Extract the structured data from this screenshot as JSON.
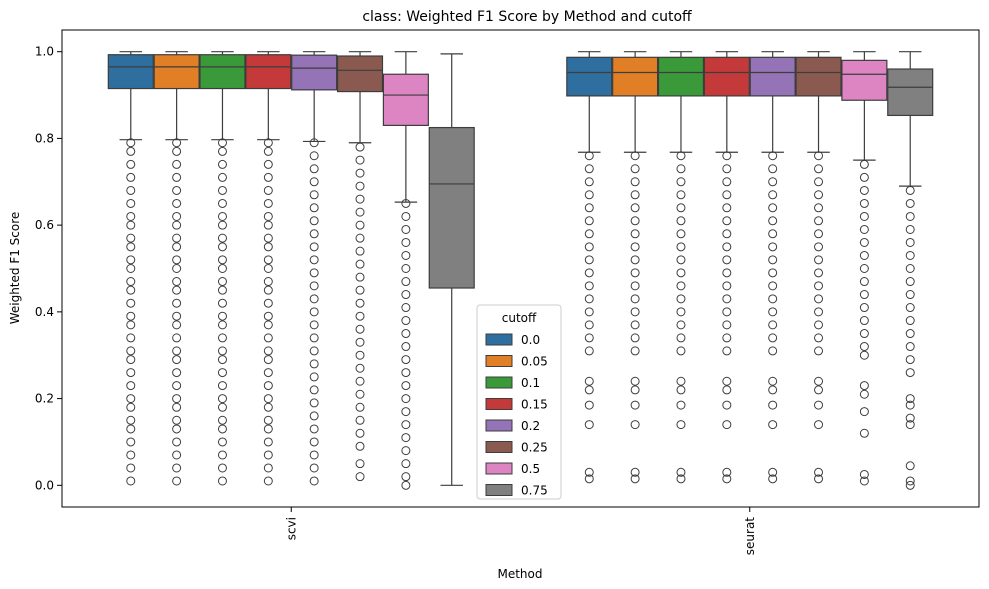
{
  "chart_data": {
    "type": "box",
    "title": "class: Weighted F1 Score by Method and cutoff",
    "xlabel": "Method",
    "ylabel": "Weighted F1 Score",
    "ylim": [
      -0.05,
      1.05
    ],
    "yticks": [
      0.0,
      0.2,
      0.4,
      0.6,
      0.8,
      1.0
    ],
    "ytick_labels": [
      "0.0",
      "0.2",
      "0.4",
      "0.6",
      "0.8",
      "1.0"
    ],
    "categories": [
      "scvi",
      "seurat"
    ],
    "grid": false,
    "legend": {
      "title": "cutoff",
      "position": "lower-center"
    },
    "series": [
      {
        "name": "0.0",
        "color": "#2f6f9f",
        "stats": [
          {
            "whisker_low": 0.797,
            "q1": 0.915,
            "median": 0.965,
            "q3": 0.993,
            "whisker_high": 1.0,
            "outliers": [
              0.79,
              0.77,
              0.74,
              0.71,
              0.68,
              0.65,
              0.62,
              0.6,
              0.57,
              0.55,
              0.52,
              0.5,
              0.47,
              0.45,
              0.42,
              0.39,
              0.37,
              0.34,
              0.31,
              0.29,
              0.26,
              0.23,
              0.2,
              0.18,
              0.15,
              0.13,
              0.1,
              0.07,
              0.04,
              0.01
            ]
          },
          {
            "whisker_low": 0.768,
            "q1": 0.898,
            "median": 0.952,
            "q3": 0.987,
            "whisker_high": 1.0,
            "outliers": [
              0.76,
              0.73,
              0.7,
              0.67,
              0.64,
              0.61,
              0.58,
              0.55,
              0.52,
              0.49,
              0.46,
              0.43,
              0.4,
              0.37,
              0.34,
              0.31,
              0.24,
              0.22,
              0.185,
              0.14,
              0.03,
              0.015
            ]
          }
        ]
      },
      {
        "name": "0.05",
        "color": "#e07f26",
        "stats": [
          {
            "whisker_low": 0.797,
            "q1": 0.915,
            "median": 0.965,
            "q3": 0.993,
            "whisker_high": 1.0,
            "outliers": [
              0.79,
              0.77,
              0.74,
              0.71,
              0.68,
              0.65,
              0.62,
              0.6,
              0.57,
              0.55,
              0.52,
              0.5,
              0.47,
              0.45,
              0.42,
              0.39,
              0.37,
              0.34,
              0.31,
              0.29,
              0.26,
              0.23,
              0.2,
              0.18,
              0.15,
              0.13,
              0.1,
              0.07,
              0.04,
              0.01
            ]
          },
          {
            "whisker_low": 0.768,
            "q1": 0.898,
            "median": 0.952,
            "q3": 0.987,
            "whisker_high": 1.0,
            "outliers": [
              0.76,
              0.73,
              0.7,
              0.67,
              0.64,
              0.61,
              0.58,
              0.55,
              0.52,
              0.49,
              0.46,
              0.43,
              0.4,
              0.37,
              0.34,
              0.31,
              0.24,
              0.22,
              0.185,
              0.14,
              0.03,
              0.015
            ]
          }
        ]
      },
      {
        "name": "0.1",
        "color": "#3a9a3a",
        "stats": [
          {
            "whisker_low": 0.797,
            "q1": 0.915,
            "median": 0.965,
            "q3": 0.993,
            "whisker_high": 1.0,
            "outliers": [
              0.79,
              0.77,
              0.74,
              0.71,
              0.68,
              0.65,
              0.62,
              0.6,
              0.57,
              0.55,
              0.52,
              0.5,
              0.47,
              0.45,
              0.42,
              0.39,
              0.37,
              0.34,
              0.31,
              0.29,
              0.26,
              0.23,
              0.2,
              0.18,
              0.15,
              0.13,
              0.1,
              0.07,
              0.04,
              0.01
            ]
          },
          {
            "whisker_low": 0.768,
            "q1": 0.898,
            "median": 0.952,
            "q3": 0.987,
            "whisker_high": 1.0,
            "outliers": [
              0.76,
              0.73,
              0.7,
              0.67,
              0.64,
              0.61,
              0.58,
              0.55,
              0.52,
              0.49,
              0.46,
              0.43,
              0.4,
              0.37,
              0.34,
              0.31,
              0.24,
              0.22,
              0.185,
              0.14,
              0.03,
              0.015
            ]
          }
        ]
      },
      {
        "name": "0.15",
        "color": "#c43a3a",
        "stats": [
          {
            "whisker_low": 0.797,
            "q1": 0.915,
            "median": 0.965,
            "q3": 0.993,
            "whisker_high": 1.0,
            "outliers": [
              0.79,
              0.77,
              0.74,
              0.71,
              0.68,
              0.65,
              0.62,
              0.6,
              0.57,
              0.55,
              0.52,
              0.5,
              0.47,
              0.45,
              0.42,
              0.39,
              0.37,
              0.34,
              0.31,
              0.29,
              0.26,
              0.23,
              0.2,
              0.18,
              0.15,
              0.13,
              0.1,
              0.07,
              0.04,
              0.01
            ]
          },
          {
            "whisker_low": 0.768,
            "q1": 0.898,
            "median": 0.952,
            "q3": 0.987,
            "whisker_high": 1.0,
            "outliers": [
              0.76,
              0.73,
              0.7,
              0.67,
              0.64,
              0.61,
              0.58,
              0.55,
              0.52,
              0.49,
              0.46,
              0.43,
              0.4,
              0.37,
              0.34,
              0.31,
              0.24,
              0.22,
              0.185,
              0.14,
              0.03,
              0.015
            ]
          }
        ]
      },
      {
        "name": "0.2",
        "color": "#9473b6",
        "stats": [
          {
            "whisker_low": 0.793,
            "q1": 0.912,
            "median": 0.962,
            "q3": 0.992,
            "whisker_high": 1.0,
            "outliers": [
              0.79,
              0.76,
              0.73,
              0.7,
              0.67,
              0.64,
              0.61,
              0.58,
              0.55,
              0.52,
              0.49,
              0.46,
              0.43,
              0.4,
              0.37,
              0.34,
              0.31,
              0.28,
              0.25,
              0.22,
              0.19,
              0.16,
              0.13,
              0.1,
              0.07,
              0.04,
              0.01
            ]
          },
          {
            "whisker_low": 0.768,
            "q1": 0.898,
            "median": 0.952,
            "q3": 0.987,
            "whisker_high": 1.0,
            "outliers": [
              0.76,
              0.73,
              0.7,
              0.67,
              0.64,
              0.61,
              0.58,
              0.55,
              0.52,
              0.49,
              0.46,
              0.43,
              0.4,
              0.37,
              0.34,
              0.31,
              0.24,
              0.22,
              0.185,
              0.14,
              0.03,
              0.015
            ]
          }
        ]
      },
      {
        "name": "0.25",
        "color": "#8a5a50",
        "stats": [
          {
            "whisker_low": 0.79,
            "q1": 0.908,
            "median": 0.957,
            "q3": 0.99,
            "whisker_high": 1.0,
            "outliers": [
              0.78,
              0.75,
              0.72,
              0.69,
              0.66,
              0.63,
              0.6,
              0.57,
              0.54,
              0.51,
              0.48,
              0.45,
              0.42,
              0.39,
              0.36,
              0.33,
              0.3,
              0.27,
              0.24,
              0.21,
              0.18,
              0.15,
              0.12,
              0.09,
              0.05,
              0.02
            ]
          },
          {
            "whisker_low": 0.768,
            "q1": 0.898,
            "median": 0.952,
            "q3": 0.987,
            "whisker_high": 1.0,
            "outliers": [
              0.76,
              0.73,
              0.7,
              0.67,
              0.64,
              0.61,
              0.58,
              0.55,
              0.52,
              0.49,
              0.46,
              0.43,
              0.4,
              0.37,
              0.34,
              0.31,
              0.24,
              0.22,
              0.185,
              0.14,
              0.03,
              0.015
            ]
          }
        ]
      },
      {
        "name": "0.5",
        "color": "#dd85c2",
        "stats": [
          {
            "whisker_low": 0.653,
            "q1": 0.83,
            "median": 0.9,
            "q3": 0.948,
            "whisker_high": 1.0,
            "outliers": [
              0.65,
              0.62,
              0.59,
              0.56,
              0.53,
              0.5,
              0.47,
              0.44,
              0.41,
              0.38,
              0.35,
              0.32,
              0.29,
              0.26,
              0.23,
              0.2,
              0.17,
              0.14,
              0.11,
              0.08,
              0.05,
              0.02,
              0.0
            ]
          },
          {
            "whisker_low": 0.75,
            "q1": 0.888,
            "median": 0.948,
            "q3": 0.98,
            "whisker_high": 1.0,
            "outliers": [
              0.74,
              0.71,
              0.68,
              0.65,
              0.62,
              0.59,
              0.56,
              0.53,
              0.5,
              0.47,
              0.44,
              0.41,
              0.38,
              0.35,
              0.32,
              0.3,
              0.23,
              0.21,
              0.17,
              0.12,
              0.025,
              0.01
            ]
          }
        ]
      },
      {
        "name": "0.75",
        "color": "#808080",
        "stats": [
          {
            "whisker_low": 0.0,
            "q1": 0.455,
            "median": 0.695,
            "q3": 0.825,
            "whisker_high": 0.995,
            "outliers": []
          },
          {
            "whisker_low": 0.69,
            "q1": 0.853,
            "median": 0.918,
            "q3": 0.96,
            "whisker_high": 1.0,
            "outliers": [
              0.68,
              0.65,
              0.62,
              0.59,
              0.56,
              0.53,
              0.5,
              0.47,
              0.44,
              0.41,
              0.38,
              0.35,
              0.32,
              0.29,
              0.26,
              0.2,
              0.185,
              0.155,
              0.14,
              0.045,
              0.01,
              0.0
            ]
          }
        ]
      }
    ]
  }
}
